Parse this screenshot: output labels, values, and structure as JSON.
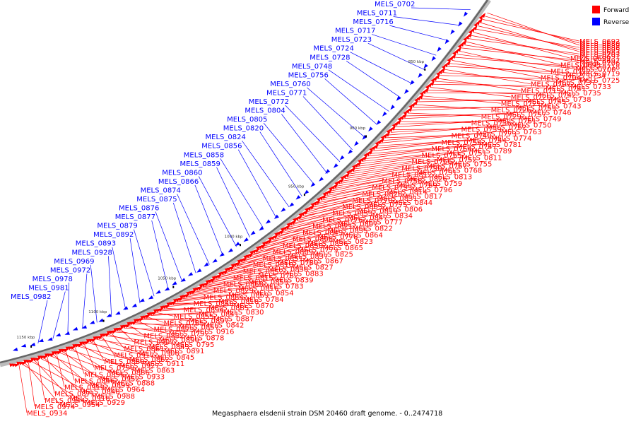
{
  "caption": "Megasphaera elsdenii strain DSM 20460 draft genome. - 0..2474718",
  "legend": [
    {
      "label": "Forward",
      "color": "#ff0000"
    },
    {
      "label": "Reverse",
      "color": "#0000ff"
    }
  ],
  "colors": {
    "forward": "#ff0000",
    "reverse": "#0000ff",
    "backbone": "#777777"
  },
  "scale_ticks": [
    "850 kbp",
    "900 kbp",
    "950 kbp",
    "1000 kbp",
    "1050 kbp",
    "1100 kbp",
    "1150 kbp"
  ],
  "reverse_labels": [
    "MELS_0702",
    "MELS_0711",
    "MELS_0716",
    "MELS_0717",
    "MELS_0723",
    "MELS_0724",
    "MELS_0728",
    "MELS_0748",
    "MELS_0756",
    "MELS_0760",
    "MELS_0771",
    "MELS_0772",
    "MELS_0804",
    "MELS_0805",
    "MELS_0820",
    "MELS_0824",
    "MELS_0856",
    "MELS_0858",
    "MELS_0859",
    "MELS_0860",
    "MELS_0866",
    "MELS_0874",
    "MELS_0875",
    "MELS_0876",
    "MELS_0877",
    "MELS_0879",
    "MELS_0892",
    "MELS_0893",
    "MELS_0928",
    "MELS_0969",
    "MELS_0972",
    "MELS_0978",
    "MELS_0981",
    "MELS_0982"
  ],
  "forward_labels": [
    "MELS_0689",
    "MELS_0680",
    "MELS_0692",
    "MELS_0683",
    "MELS_0695",
    "MELS_0686",
    "MELS_0699",
    "MELS_0691",
    "MELS_0703",
    "MELS_0693",
    "MELS_0706",
    "MELS_0697",
    "MELS_0712",
    "MELS_0700",
    "MELS_0718",
    "MELS_0704",
    "MELS_0734",
    "MELS_0719",
    "MELS_0707",
    "MELS_0737",
    "MELS_0725",
    "MELS_0713",
    "MELS_0741",
    "MELS_0733",
    "MELS_0720",
    "MELS_0742",
    "MELS_0735",
    "MELS_0721",
    "MELS_0745",
    "MELS_0738",
    "MELS_0726",
    "MELS_0753",
    "MELS_0743",
    "MELS_0729",
    "MELS_0757",
    "MELS_0746",
    "MELS_0736",
    "MELS_0761",
    "MELS_0749",
    "MELS_0739",
    "MELS_0762",
    "MELS_0750",
    "MELS_0740",
    "MELS_0773",
    "MELS_0763",
    "MELS_0754",
    "MELS_0744",
    "MELS_0774",
    "MELS_0764",
    "MELS_0747",
    "MELS_0781",
    "MELS_0765",
    "MELS_0751",
    "MELS_0789",
    "MELS_0766",
    "MELS_0752",
    "MELS_0811",
    "MELS_0790",
    "MELS_0767",
    "MELS_0755",
    "MELS_0812",
    "MELS_0791",
    "MELS_0768",
    "MELS_0758",
    "MELS_0826",
    "MELS_0813",
    "MELS_0793",
    "MELS_0769",
    "MELS_0759",
    "MELS_0828",
    "MELS_0814",
    "MELS_0796",
    "MELS_0770",
    "MELS_0831",
    "MELS_0817",
    "MELS_0803",
    "MELS_0775",
    "MELS_0844",
    "MELS_0833",
    "MELS_0819",
    "MELS_0806",
    "MELS_0776",
    "MELS_0847",
    "MELS_0834",
    "MELS_0821",
    "MELS_0807",
    "MELS_0777",
    "MELS_0849",
    "MELS_0835",
    "MELS_0822",
    "MELS_0808",
    "MELS_0778",
    "MELS_0864",
    "MELS_0850",
    "MELS_0836",
    "MELS_0823",
    "MELS_0809",
    "MELS_0779",
    "MELS_0865",
    "MELS_0851",
    "MELS_0837",
    "MELS_0825",
    "MELS_0810",
    "MELS_0780",
    "MELS_0867",
    "MELS_0852",
    "MELS_0838",
    "MELS_0827",
    "MELS_0815",
    "MELS_0782",
    "MELS_0883",
    "MELS_0868",
    "MELS_0853",
    "MELS_0839",
    "MELS_0829",
    "MELS_0816",
    "MELS_0783",
    "MELS_0884",
    "MELS_0869",
    "MELS_0854",
    "MELS_0840",
    "MELS_0818",
    "MELS_0784",
    "MELS_0894",
    "MELS_0885",
    "MELS_0870",
    "MELS_0855",
    "MELS_0841",
    "MELS_0830",
    "MELS_0785",
    "MELS_0897",
    "MELS_0887",
    "MELS_0873",
    "MELS_0857",
    "MELS_0842",
    "MELS_0832",
    "MELS_0792",
    "MELS_0916",
    "MELS_0907",
    "MELS_0890",
    "MELS_0878",
    "MELS_0861",
    "MELS_0843",
    "MELS_0795",
    "MELS_0917",
    "MELS_0908",
    "MELS_0891",
    "MELS_0880",
    "MELS_0862",
    "MELS_0845",
    "MELS_0799",
    "MELS_0927",
    "MELS_0911",
    "MELS_0895",
    "MELS_0886",
    "MELS_0863",
    "MELS_0846",
    "MELS_0952",
    "MELS_0933",
    "MELS_0913",
    "MELS_0899",
    "MELS_0888",
    "MELS_0871",
    "MELS_0848",
    "MELS_0964",
    "MELS_0944",
    "MELS_0918",
    "MELS_0988",
    "MELS_0974",
    "MELS_0954",
    "MELS_0929",
    "MELS_0934"
  ]
}
